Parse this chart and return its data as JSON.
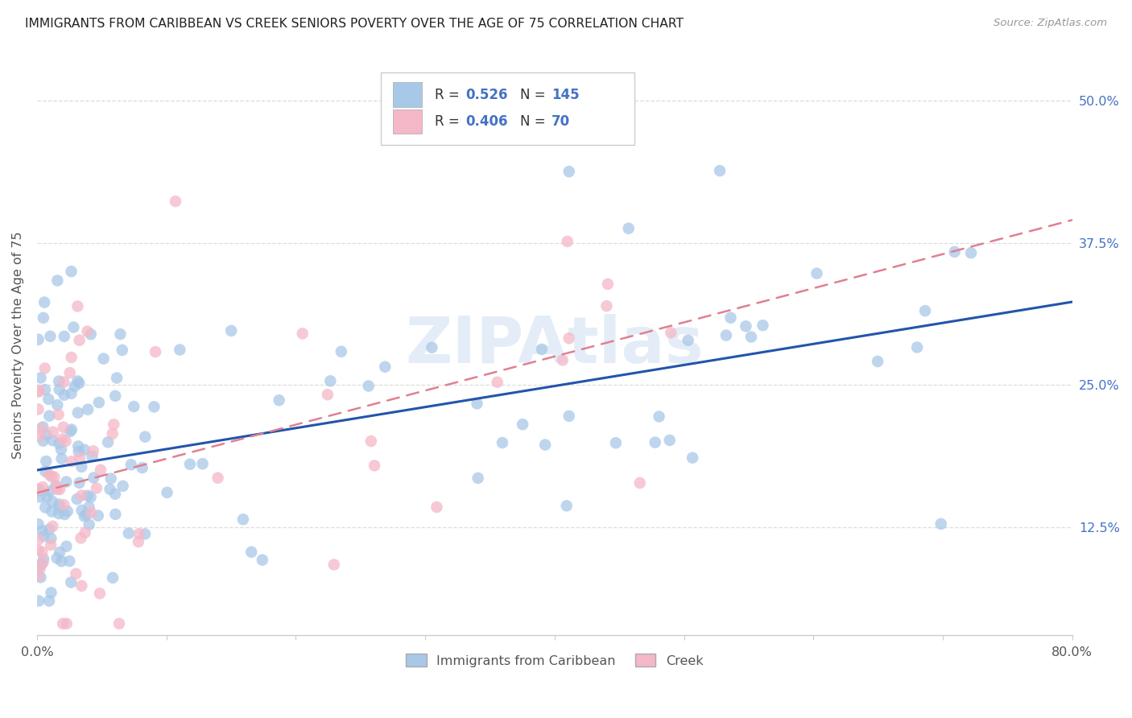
{
  "title": "IMMIGRANTS FROM CARIBBEAN VS CREEK SENIORS POVERTY OVER THE AGE OF 75 CORRELATION CHART",
  "source": "Source: ZipAtlas.com",
  "ylabel": "Seniors Poverty Over the Age of 75",
  "xlim": [
    0.0,
    0.8
  ],
  "ylim": [
    0.03,
    0.54
  ],
  "xtick_positions": [
    0.0,
    0.1,
    0.2,
    0.3,
    0.4,
    0.5,
    0.6,
    0.7,
    0.8
  ],
  "xticklabels": [
    "0.0%",
    "",
    "",
    "",
    "",
    "",
    "",
    "",
    "80.0%"
  ],
  "ytick_positions": [
    0.125,
    0.25,
    0.375,
    0.5
  ],
  "yticklabels": [
    "12.5%",
    "25.0%",
    "37.5%",
    "50.0%"
  ],
  "legend_R_caribbean": "0.526",
  "legend_N_caribbean": "145",
  "legend_R_creek": "0.406",
  "legend_N_creek": "70",
  "caribbean_color": "#a8c8e8",
  "creek_color": "#f4b8c8",
  "caribbean_line_color": "#2255aa",
  "creek_line_color": "#e08090",
  "background_color": "#ffffff",
  "grid_color": "#dddddd",
  "watermark": "ZIPAtlas",
  "carib_seed": 12345,
  "creek_seed": 54321
}
